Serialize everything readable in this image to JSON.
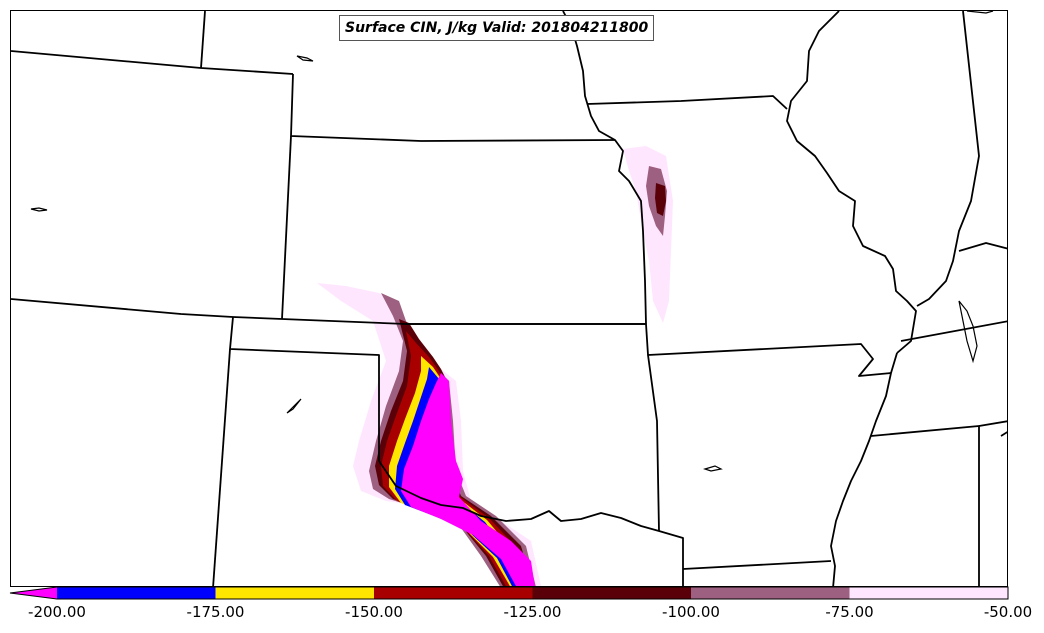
{
  "title": "Surface CIN, J/kg Valid: 201804211800",
  "colorbar": {
    "ticks": [
      "-200.00",
      "-175.00",
      "-150.00",
      "-125.00",
      "-100.00",
      "-75.00",
      "-50.00"
    ],
    "bins": [
      {
        "range": [
          -225,
          -200
        ],
        "color": "#ff00ff",
        "note": "extend-below"
      },
      {
        "range": [
          -200,
          -175
        ],
        "color": "#0000ff"
      },
      {
        "range": [
          -175,
          -150
        ],
        "color": "#ffe600"
      },
      {
        "range": [
          -150,
          -125
        ],
        "color": "#a80000"
      },
      {
        "range": [
          -125,
          -100
        ],
        "color": "#5a0008"
      },
      {
        "range": [
          -100,
          -75
        ],
        "color": "#9e6080"
      },
      {
        "range": [
          -75,
          -50
        ],
        "color": "#ffe6ff"
      }
    ]
  },
  "map": {
    "field": "Surface CIN",
    "units": "J/kg",
    "valid": "201804211800",
    "region": "Central Plains / Southern Plains, USA"
  }
}
